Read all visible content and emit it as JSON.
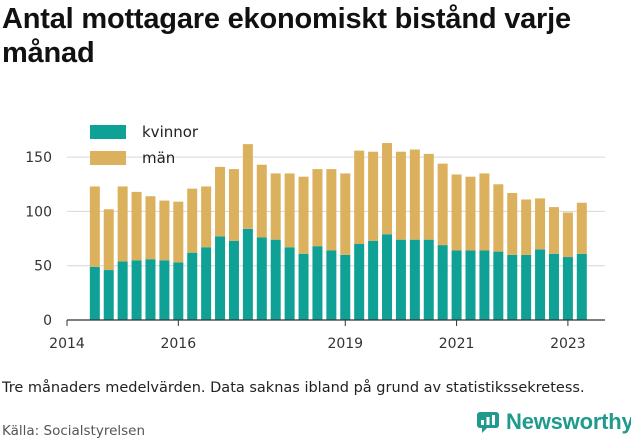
{
  "title": "Antal mottagare ekonomiskt bistånd varje månad",
  "note": "Tre månaders medelvärden. Data saknas ibland på grund av statistikssekretess.",
  "source": "Källa: Socialstyrelsen",
  "brand": {
    "name": "Newsworthy",
    "logo_icon": "newsworthy-logo-icon",
    "color": "#1f9a8c"
  },
  "chart_data": {
    "type": "bar",
    "stacked": true,
    "title": "",
    "xlabel": "",
    "ylabel": "",
    "ylim": [
      0,
      175
    ],
    "yticks": [
      0,
      50,
      100,
      150
    ],
    "xticks": [
      "2014",
      "2016",
      "2019",
      "2021",
      "2023"
    ],
    "x_range": [
      "2014-01",
      "2023-09"
    ],
    "grid": "horizontal",
    "legend_position": "top-left",
    "x": [
      "2014-07",
      "2014-10",
      "2015-01",
      "2015-04",
      "2015-07",
      "2015-10",
      "2016-01",
      "2016-04",
      "2016-07",
      "2016-10",
      "2017-01",
      "2017-04",
      "2017-07",
      "2017-10",
      "2018-01",
      "2018-04",
      "2018-07",
      "2018-10",
      "2019-01",
      "2019-04",
      "2019-07",
      "2019-10",
      "2020-01",
      "2020-04",
      "2020-07",
      "2020-10",
      "2021-01",
      "2021-04",
      "2021-07",
      "2021-10",
      "2022-01",
      "2022-04",
      "2022-07",
      "2022-10",
      "2023-01",
      "2023-04"
    ],
    "series": [
      {
        "name": "kvinnor",
        "color": "#0fa096",
        "values": [
          49,
          46,
          54,
          55,
          56,
          55,
          53,
          62,
          67,
          77,
          73,
          84,
          76,
          74,
          67,
          61,
          68,
          64,
          60,
          70,
          73,
          79,
          74,
          74,
          74,
          69,
          64,
          64,
          64,
          63,
          60,
          60,
          65,
          61,
          58,
          61
        ]
      },
      {
        "name": "män",
        "color": "#dcb15d",
        "values": [
          74,
          56,
          69,
          63,
          58,
          55,
          56,
          59,
          56,
          64,
          66,
          78,
          67,
          61,
          68,
          71,
          71,
          75,
          75,
          86,
          82,
          84,
          81,
          83,
          79,
          75,
          70,
          68,
          71,
          62,
          57,
          51,
          47,
          43,
          41,
          47
        ]
      }
    ]
  }
}
